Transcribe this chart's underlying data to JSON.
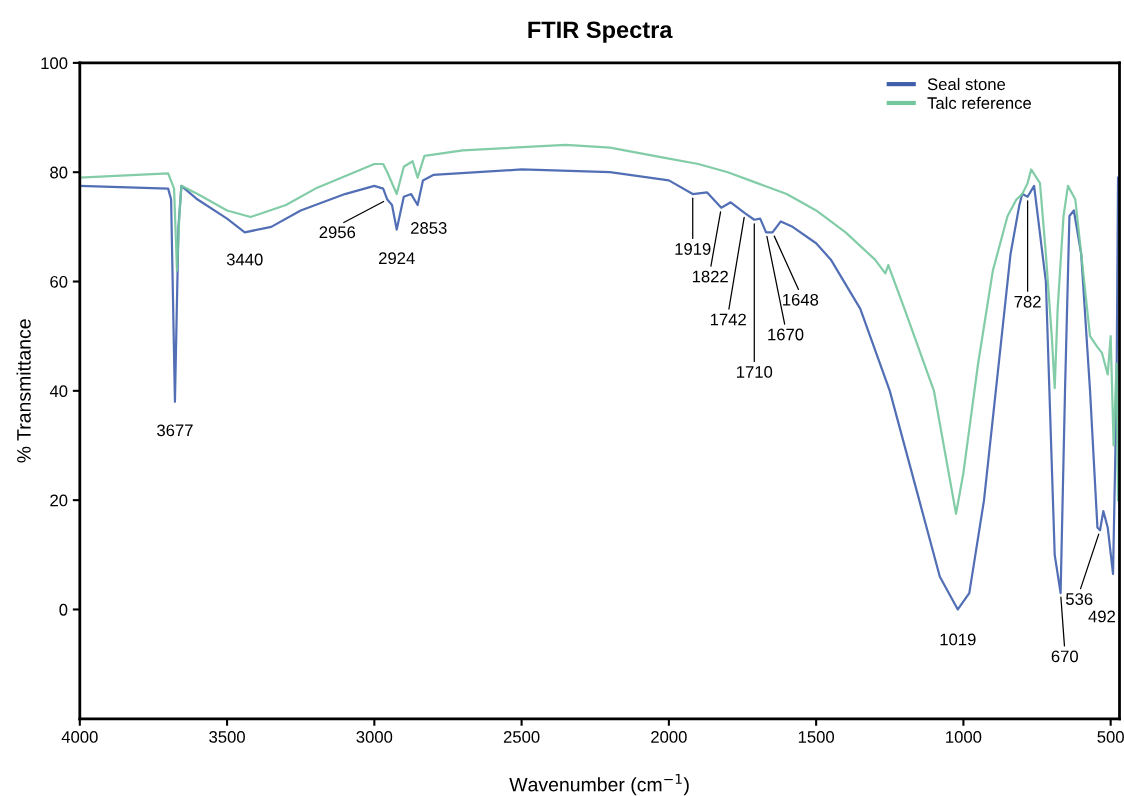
{
  "chart_data": {
    "type": "line",
    "title": "FTIR Spectra",
    "xlabel": "Wavenumber (cm$^{−1}$)",
    "ylabel": "% Transmittance",
    "xlim": [
      4000,
      470
    ],
    "xticks": [
      4000,
      3500,
      3000,
      2500,
      2000,
      1500,
      1000,
      500
    ],
    "ylim": [
      -20,
      100
    ],
    "yticks": [
      0,
      20,
      40,
      60,
      80,
      100
    ],
    "grid": false,
    "legend": "top right",
    "marker": "none",
    "line_style": "solid",
    "series": [
      {
        "name": "Seal stone",
        "color": "#3f5fad",
        "x": [
          4000,
          3700,
          3690,
          3677,
          3665,
          3655,
          3600,
          3500,
          3440,
          3350,
          3250,
          3100,
          3000,
          2970,
          2956,
          2940,
          2924,
          2900,
          2875,
          2853,
          2835,
          2800,
          2500,
          2200,
          2000,
          1919,
          1870,
          1822,
          1790,
          1742,
          1710,
          1690,
          1670,
          1648,
          1620,
          1580,
          1500,
          1450,
          1350,
          1250,
          1150,
          1080,
          1019,
          980,
          930,
          880,
          840,
          810,
          800,
          782,
          760,
          720,
          690,
          670,
          655,
          640,
          625,
          600,
          570,
          545,
          536,
          525,
          510,
          492,
          480,
          475
        ],
        "values": [
          77.5,
          77,
          75,
          38,
          70,
          77.5,
          75,
          71.5,
          69,
          70,
          73,
          76,
          77.5,
          77,
          75,
          74,
          69.5,
          75.5,
          76,
          74,
          78.5,
          79.5,
          80.5,
          80,
          78.5,
          76,
          76.3,
          73.5,
          74.5,
          72.5,
          71.3,
          71.5,
          69,
          69,
          71,
          70,
          67,
          64,
          55,
          40,
          20,
          6,
          0,
          3,
          20,
          45,
          65,
          74,
          76,
          75.5,
          77.5,
          60,
          10,
          3,
          40,
          72,
          73,
          65,
          40,
          15,
          14.5,
          18,
          15,
          6.5,
          40,
          79
        ]
      },
      {
        "name": "Talc reference",
        "color": "#74c69d",
        "x": [
          4000,
          3700,
          3680,
          3670,
          3662,
          3655,
          3600,
          3500,
          3420,
          3300,
          3200,
          3000,
          2970,
          2956,
          2924,
          2900,
          2870,
          2853,
          2830,
          2700,
          2350,
          2200,
          2000,
          1900,
          1800,
          1700,
          1600,
          1500,
          1400,
          1300,
          1265,
          1255,
          1200,
          1100,
          1040,
          1025,
          1000,
          950,
          900,
          850,
          820,
          800,
          782,
          770,
          740,
          720,
          700,
          690,
          680,
          660,
          645,
          620,
          600,
          570,
          545,
          530,
          510,
          500,
          490,
          480,
          475
        ],
        "values": [
          79,
          79.8,
          77,
          62,
          72,
          77.5,
          76,
          73,
          71.8,
          74,
          77,
          81.5,
          81.5,
          80,
          76,
          81,
          82,
          79,
          83,
          84,
          85,
          84.5,
          82.5,
          81.5,
          80,
          78,
          76,
          73,
          69,
          64,
          61.5,
          63,
          55,
          40,
          22,
          17.5,
          25,
          45,
          62,
          72,
          75,
          76,
          78,
          80.5,
          78,
          65,
          50,
          40.5,
          55,
          72,
          77.5,
          75,
          65,
          50,
          48,
          47,
          43,
          50,
          30,
          45,
          20
        ]
      }
    ],
    "annotations": [
      {
        "text": "3677",
        "x": 3677,
        "y": 38
      },
      {
        "text": "3440",
        "x": 3440,
        "y": 69
      },
      {
        "text": "2956",
        "x": 2956,
        "y": 75
      },
      {
        "text": "2924",
        "x": 2924,
        "y": 69.5
      },
      {
        "text": "2853",
        "x": 2853,
        "y": 74
      },
      {
        "text": "1919",
        "x": 1919,
        "y": 76
      },
      {
        "text": "1822",
        "x": 1822,
        "y": 73.5
      },
      {
        "text": "1742",
        "x": 1742,
        "y": 72.5
      },
      {
        "text": "1710",
        "x": 1710,
        "y": 71.3
      },
      {
        "text": "1670",
        "x": 1670,
        "y": 69
      },
      {
        "text": "1648",
        "x": 1648,
        "y": 69
      },
      {
        "text": "782",
        "x": 782,
        "y": 75.5
      },
      {
        "text": "1019",
        "x": 1019,
        "y": 0
      },
      {
        "text": "670",
        "x": 670,
        "y": 3
      },
      {
        "text": "536",
        "x": 536,
        "y": 14.5
      },
      {
        "text": "492",
        "x": 492,
        "y": 6.5
      }
    ]
  }
}
